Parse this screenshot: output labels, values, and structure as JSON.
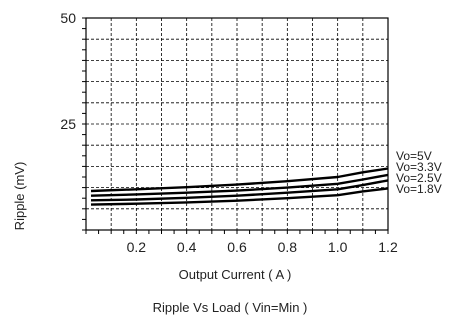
{
  "chart_data": {
    "type": "line",
    "xlabel": "Output Current ( A )",
    "ylabel": "Ripple (mV)",
    "caption": "Ripple  Vs Load ( Vin=Min )",
    "xlim": [
      0,
      1.2
    ],
    "ylim": [
      0,
      50
    ],
    "x_ticks": [
      "0.2",
      "0.4",
      "0.6",
      "0.8",
      "1.0",
      "1.2"
    ],
    "y_ticks": [
      "25",
      "50"
    ],
    "grid": true,
    "legend_position": "right",
    "x": [
      0.02,
      0.2,
      0.4,
      0.6,
      0.8,
      1.0,
      1.1,
      1.2
    ],
    "series": [
      {
        "name": "Vo=5V",
        "values": [
          9.2,
          9.6,
          10.1,
          10.7,
          11.5,
          12.5,
          13.6,
          14.5
        ]
      },
      {
        "name": "Vo=3.3V",
        "values": [
          8.1,
          8.4,
          8.8,
          9.3,
          10.0,
          10.9,
          11.9,
          13.0
        ]
      },
      {
        "name": "Vo=2.5V",
        "values": [
          7.0,
          7.2,
          7.6,
          8.1,
          8.8,
          9.6,
          10.6,
          11.7
        ]
      },
      {
        "name": "Vo=1.8V",
        "values": [
          6.0,
          6.2,
          6.5,
          6.9,
          7.5,
          8.2,
          9.1,
          9.8
        ]
      }
    ]
  }
}
